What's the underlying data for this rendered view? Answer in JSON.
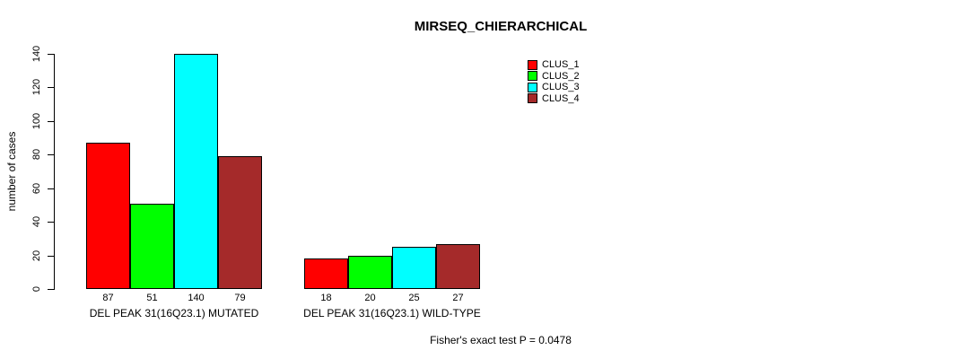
{
  "chart_data": {
    "type": "bar",
    "title": "MIRSEQ_CHIERARCHICAL",
    "ylabel": "number of cases",
    "xlabel": "",
    "ylim": [
      0,
      140
    ],
    "yticks": [
      0,
      20,
      40,
      60,
      80,
      100,
      120,
      140
    ],
    "categories": [
      "DEL PEAK 31(16Q23.1) MUTATED",
      "DEL PEAK 31(16Q23.1) WILD-TYPE"
    ],
    "series": [
      {
        "name": "CLUS_1",
        "color": "#ff0000",
        "values": [
          87,
          18
        ]
      },
      {
        "name": "CLUS_2",
        "color": "#00ff00",
        "values": [
          51,
          20
        ]
      },
      {
        "name": "CLUS_3",
        "color": "#00ffff",
        "values": [
          140,
          25
        ]
      },
      {
        "name": "CLUS_4",
        "color": "#a52a2a",
        "values": [
          79,
          27
        ]
      }
    ],
    "bar_value_labels_shown": true,
    "legend_position": "top-right",
    "grid": false,
    "background": "#ffffff",
    "annotation": "Fisher's exact test P = 0.0478"
  }
}
